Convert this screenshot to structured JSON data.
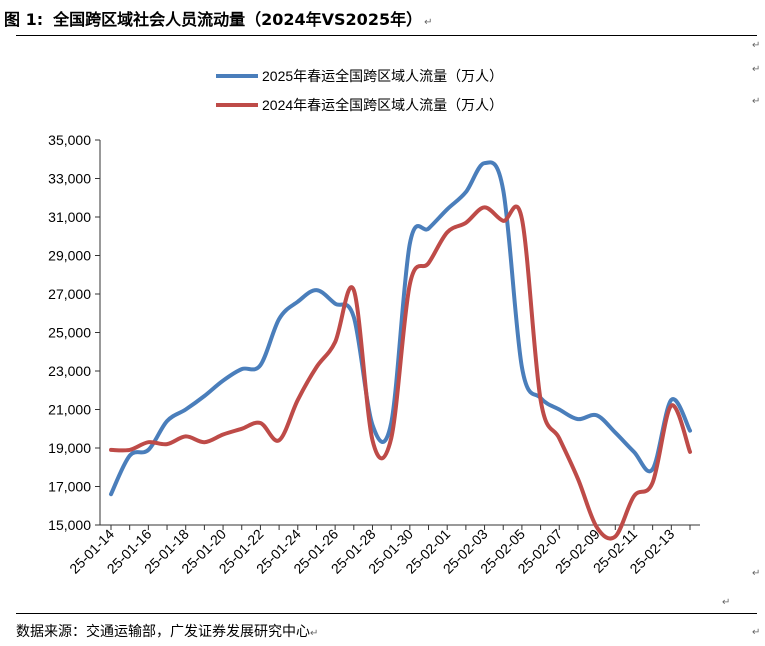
{
  "figure": {
    "number": "图 1:",
    "title": "全国跨区域社会人员流动量（2024年VS2025年）"
  },
  "source": "数据来源：交通运输部，广发证券发展研究中心",
  "paragraph_mark": "↵",
  "chart_data": {
    "type": "line",
    "title": "全国跨区域社会人员流动量（2024年VS2025年）",
    "xlabel": "",
    "ylabel": "",
    "ylim": [
      15000,
      35000
    ],
    "yticks": [
      15000,
      17000,
      19000,
      21000,
      23000,
      25000,
      27000,
      29000,
      31000,
      33000,
      35000
    ],
    "ytick_labels": [
      "15,000",
      "17,000",
      "19,000",
      "21,000",
      "23,000",
      "25,000",
      "27,000",
      "29,000",
      "31,000",
      "33,000",
      "35,000"
    ],
    "categories": [
      "25-01-14",
      "25-01-15",
      "25-01-16",
      "25-01-17",
      "25-01-18",
      "25-01-19",
      "25-01-20",
      "25-01-21",
      "25-01-22",
      "25-01-23",
      "25-01-24",
      "25-01-25",
      "25-01-26",
      "25-01-27",
      "25-01-28",
      "25-01-29",
      "25-01-30",
      "25-01-31",
      "25-02-01",
      "25-02-02",
      "25-02-03",
      "25-02-04",
      "25-02-05",
      "25-02-06",
      "25-02-07",
      "25-02-08",
      "25-02-09",
      "25-02-10",
      "25-02-11",
      "25-02-12",
      "25-02-13",
      "25-02-14"
    ],
    "xtick_labels": [
      "25-01-14",
      "25-01-16",
      "25-01-18",
      "25-01-20",
      "25-01-22",
      "25-01-24",
      "25-01-26",
      "25-01-28",
      "25-01-30",
      "25-02-01",
      "25-02-03",
      "25-02-05",
      "25-02-07",
      "25-02-09",
      "25-02-11",
      "25-02-13"
    ],
    "legend_position": "top",
    "grid": false,
    "series": [
      {
        "name": "2025年春运全国跨区域人流量（万人）",
        "color": "#4a7ebb",
        "values": [
          16600,
          18600,
          18900,
          20400,
          21000,
          21700,
          22500,
          23100,
          23300,
          25700,
          26600,
          27200,
          26500,
          25800,
          20200,
          20300,
          29600,
          30400,
          31400,
          32300,
          33800,
          32400,
          23200,
          21600,
          21000,
          20500,
          20700,
          19800,
          18800,
          17900,
          21500,
          19900
        ]
      },
      {
        "name": "2024年春运全国跨区域人流量（万人）",
        "color": "#be4b48",
        "values": [
          18900,
          18900,
          19300,
          19200,
          19600,
          19300,
          19700,
          20000,
          20300,
          19400,
          21500,
          23200,
          24500,
          27200,
          19400,
          19500,
          27500,
          28600,
          30200,
          30700,
          31500,
          30800,
          30900,
          21500,
          19500,
          17400,
          14900,
          14400,
          16500,
          17200,
          21200,
          18800
        ]
      }
    ]
  }
}
